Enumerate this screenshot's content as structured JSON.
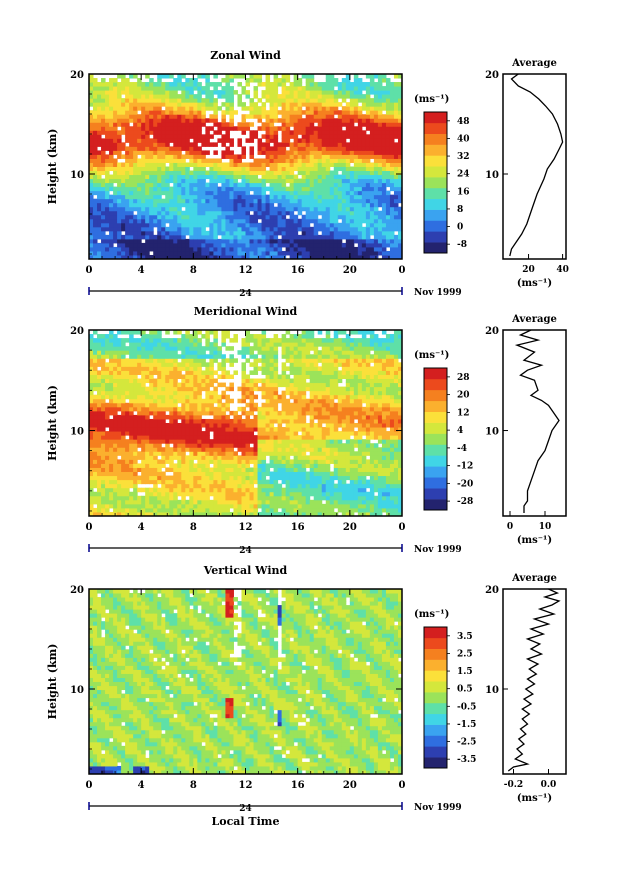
{
  "chart_data": [
    {
      "type": "heatmap",
      "title": "Zonal Wind",
      "ylabel": "Height (km)",
      "xlabel": "",
      "x_ticks": [
        "0",
        "4",
        "8",
        "12",
        "16",
        "20",
        "0"
      ],
      "date_tick": "24",
      "date_label": "Nov 1999",
      "xlim": [
        0,
        24
      ],
      "y_ticks": [
        "20",
        "10"
      ],
      "ylim": [
        1.5,
        20
      ],
      "colorbar": {
        "unit": "(ms⁻¹)",
        "ticks": [
          "48",
          "40",
          "32",
          "24",
          "16",
          "8",
          "0",
          "-8"
        ],
        "levels": [
          -8,
          0,
          8,
          16,
          24,
          32,
          40,
          48
        ],
        "colors": [
          "#23236e",
          "#2d3fb0",
          "#2f6ee0",
          "#3aa3f0",
          "#40d5e6",
          "#5ee0a8",
          "#9be35a",
          "#d4e73c",
          "#fbe03a",
          "#fbb02e",
          "#f5801f",
          "#ec4a1d",
          "#d41f1f"
        ]
      },
      "profile": {
        "title": "Average",
        "x_ticks": [
          "20",
          "40"
        ],
        "xlim": [
          5,
          42
        ],
        "unit": "(ms⁻¹)",
        "points": [
          [
            14,
            20
          ],
          [
            10,
            19.5
          ],
          [
            14,
            18.8
          ],
          [
            21,
            18.2
          ],
          [
            26,
            17.5
          ],
          [
            30,
            16.8
          ],
          [
            34,
            16
          ],
          [
            37,
            15
          ],
          [
            39,
            14
          ],
          [
            40,
            13.2
          ],
          [
            38,
            12.5
          ],
          [
            35,
            11.5
          ],
          [
            31,
            10.5
          ],
          [
            29,
            9.5
          ],
          [
            25,
            8
          ],
          [
            22,
            6.5
          ],
          [
            19,
            5
          ],
          [
            16,
            4
          ],
          [
            12,
            3
          ],
          [
            10,
            2.5
          ],
          [
            9,
            1.8
          ]
        ]
      },
      "profile_ylim": [
        1.5,
        20
      ]
    },
    {
      "type": "heatmap",
      "title": "Meridional Wind",
      "ylabel": "Height (km)",
      "xlabel": "",
      "x_ticks": [
        "0",
        "4",
        "8",
        "12",
        "16",
        "20",
        "0"
      ],
      "date_tick": "24",
      "date_label": "Nov 1999",
      "xlim": [
        0,
        24
      ],
      "y_ticks": [
        "20",
        "10"
      ],
      "ylim": [
        1.5,
        20
      ],
      "colorbar": {
        "unit": "(ms⁻¹)",
        "ticks": [
          "28",
          "20",
          "12",
          "4",
          "-4",
          "-12",
          "-20",
          "-28"
        ],
        "levels": [
          -28,
          -20,
          -12,
          -4,
          4,
          12,
          20,
          28
        ],
        "colors": [
          "#23236e",
          "#2d3fb0",
          "#2f6ee0",
          "#3aa3f0",
          "#40d5e6",
          "#5ee0a8",
          "#9be35a",
          "#d4e73c",
          "#fbe03a",
          "#fbb02e",
          "#f5801f",
          "#ec4a1d",
          "#d41f1f"
        ]
      },
      "profile": {
        "title": "Average",
        "x_ticks": [
          "0",
          "10"
        ],
        "xlim": [
          -2,
          16
        ],
        "unit": "(ms⁻¹)",
        "points": [
          [
            6,
            20
          ],
          [
            3,
            19.5
          ],
          [
            8,
            19
          ],
          [
            2,
            18.5
          ],
          [
            7,
            17.8
          ],
          [
            4,
            17
          ],
          [
            9,
            16.5
          ],
          [
            5,
            16
          ],
          [
            3,
            15.5
          ],
          [
            7,
            15
          ],
          [
            8,
            14
          ],
          [
            6,
            13.5
          ],
          [
            9,
            13
          ],
          [
            11,
            12.5
          ],
          [
            12,
            12
          ],
          [
            14,
            11
          ],
          [
            13,
            10.5
          ],
          [
            12,
            10
          ],
          [
            11,
            9
          ],
          [
            10,
            8
          ],
          [
            8,
            7
          ],
          [
            7,
            6
          ],
          [
            6,
            5
          ],
          [
            5,
            4
          ],
          [
            5,
            3
          ],
          [
            4,
            2.5
          ],
          [
            4,
            1.8
          ]
        ]
      },
      "profile_ylim": [
        1.5,
        20
      ]
    },
    {
      "type": "heatmap",
      "title": "Vertical Wind",
      "ylabel": "Height (km)",
      "xlabel": "Local Time",
      "x_ticks": [
        "0",
        "4",
        "8",
        "12",
        "16",
        "20",
        "0"
      ],
      "date_tick": "24",
      "date_label": "Nov 1999",
      "xlim": [
        0,
        24
      ],
      "y_ticks": [
        "20",
        "10"
      ],
      "ylim": [
        1.5,
        20
      ],
      "colorbar": {
        "unit": "(ms⁻¹)",
        "ticks": [
          "3.5",
          "2.5",
          "1.5",
          "0.5",
          "-0.5",
          "-1.5",
          "-2.5",
          "-3.5"
        ],
        "levels": [
          -3.5,
          -2.5,
          -1.5,
          -0.5,
          0.5,
          1.5,
          2.5,
          3.5
        ],
        "colors": [
          "#23236e",
          "#2d3fb0",
          "#2f6ee0",
          "#3aa3f0",
          "#40d5e6",
          "#5ee0a8",
          "#9be35a",
          "#d4e73c",
          "#fbe03a",
          "#fbb02e",
          "#f5801f",
          "#ec4a1d",
          "#d41f1f"
        ]
      },
      "profile": {
        "title": "Average",
        "x_ticks": [
          "-0.2",
          "0.0"
        ],
        "xlim": [
          -0.26,
          0.1
        ],
        "unit": "(ms⁻¹)",
        "points": [
          [
            0.0,
            20
          ],
          [
            0.05,
            19.6
          ],
          [
            -0.02,
            19.2
          ],
          [
            0.06,
            18.8
          ],
          [
            0.02,
            18.4
          ],
          [
            -0.05,
            18
          ],
          [
            0.03,
            17.5
          ],
          [
            -0.08,
            17
          ],
          [
            0.0,
            16.5
          ],
          [
            -0.1,
            16
          ],
          [
            -0.03,
            15.5
          ],
          [
            -0.12,
            15
          ],
          [
            -0.05,
            14.5
          ],
          [
            -0.1,
            14
          ],
          [
            -0.04,
            13.5
          ],
          [
            -0.12,
            13
          ],
          [
            -0.06,
            12.5
          ],
          [
            -0.11,
            12
          ],
          [
            -0.07,
            11.5
          ],
          [
            -0.12,
            11
          ],
          [
            -0.08,
            10.5
          ],
          [
            -0.13,
            10
          ],
          [
            -0.09,
            9.5
          ],
          [
            -0.14,
            9
          ],
          [
            -0.1,
            8.5
          ],
          [
            -0.15,
            8
          ],
          [
            -0.11,
            7.5
          ],
          [
            -0.15,
            7
          ],
          [
            -0.12,
            6.5
          ],
          [
            -0.16,
            6
          ],
          [
            -0.13,
            5.5
          ],
          [
            -0.17,
            5
          ],
          [
            -0.14,
            4.5
          ],
          [
            -0.18,
            4
          ],
          [
            -0.15,
            3.5
          ],
          [
            -0.19,
            3
          ],
          [
            -0.12,
            2.5
          ],
          [
            -0.2,
            2.2
          ],
          [
            -0.23,
            1.8
          ]
        ]
      },
      "profile_ylim": [
        1.5,
        20
      ]
    }
  ]
}
